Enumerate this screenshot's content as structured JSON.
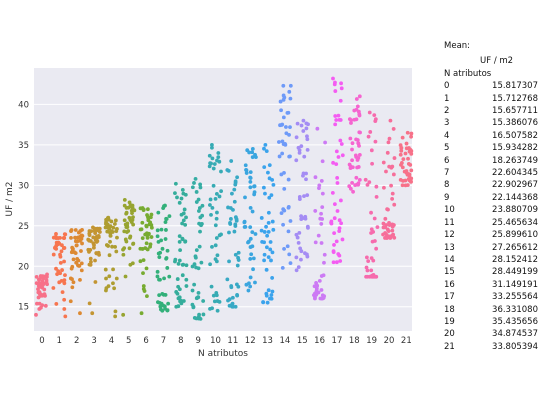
{
  "chart_data": {
    "type": "scatter",
    "style": "strip plot (jittered), one color per category",
    "xlabel": "N atributos",
    "ylabel": "UF / m2",
    "categories": [
      "0",
      "1",
      "2",
      "3",
      "4",
      "5",
      "6",
      "7",
      "8",
      "9",
      "10",
      "11",
      "12",
      "13",
      "14",
      "15",
      "16",
      "17",
      "18",
      "19",
      "20",
      "21"
    ],
    "xticks": [
      "0",
      "1",
      "2",
      "3",
      "4",
      "5",
      "6",
      "7",
      "8",
      "9",
      "10",
      "11",
      "12",
      "13",
      "14",
      "15",
      "16",
      "17",
      "18",
      "19",
      "20",
      "21"
    ],
    "yticks": [
      15,
      20,
      25,
      30,
      35,
      40
    ],
    "ylim": [
      12,
      44.5
    ],
    "grid": true,
    "background": "#eaeaf2",
    "colors": [
      "#f77189",
      "#f7754f",
      "#dc8932",
      "#c39532",
      "#ae9d31",
      "#97a431",
      "#77ab31",
      "#33b07a",
      "#35ad9c",
      "#36ada4",
      "#37abb4",
      "#38a9c5",
      "#3aa5df",
      "#3ba3ec",
      "#6e9af8",
      "#a48cf4",
      "#cc7af4",
      "#f45cf2",
      "#f565d0",
      "#f66bad",
      "#f66e9a",
      "#f77189"
    ],
    "groups": [
      {
        "x": "0",
        "n": 45,
        "min": 14.0,
        "max": 19.0,
        "mean": 15.817307
      },
      {
        "x": "1",
        "n": 45,
        "min": 13.8,
        "max": 24.0,
        "mean": 15.712768
      },
      {
        "x": "2",
        "n": 45,
        "min": 14.2,
        "max": 24.5,
        "mean": 15.657711
      },
      {
        "x": "3",
        "n": 45,
        "min": 14.2,
        "max": 24.8,
        "mean": 15.386076
      },
      {
        "x": "4",
        "n": 45,
        "min": 13.8,
        "max": 26.0,
        "mean": 16.507582
      },
      {
        "x": "5",
        "n": 45,
        "min": 14.0,
        "max": 28.2,
        "mean": 15.934282
      },
      {
        "x": "6",
        "n": 45,
        "min": 14.2,
        "max": 27.2,
        "mean": 18.263749
      },
      {
        "x": "7",
        "n": 45,
        "min": 14.5,
        "max": 27.5,
        "mean": 22.604345
      },
      {
        "x": "8",
        "n": 45,
        "min": 15.0,
        "max": 30.2,
        "mean": 22.902967
      },
      {
        "x": "9",
        "n": 45,
        "min": 13.5,
        "max": 30.8,
        "mean": 22.144368
      },
      {
        "x": "10",
        "n": 45,
        "min": 14.5,
        "max": 35.0,
        "mean": 23.880709
      },
      {
        "x": "11",
        "n": 45,
        "min": 15.0,
        "max": 33.0,
        "mean": 25.465634
      },
      {
        "x": "12",
        "n": 45,
        "min": 17.0,
        "max": 34.5,
        "mean": 25.89961
      },
      {
        "x": "13",
        "n": 45,
        "min": 15.5,
        "max": 35.0,
        "mean": 27.265612
      },
      {
        "x": "14",
        "n": 45,
        "min": 19.8,
        "max": 42.3,
        "mean": 28.152412
      },
      {
        "x": "15",
        "n": 45,
        "min": 19.5,
        "max": 38.0,
        "mean": 28.449199
      },
      {
        "x": "16",
        "n": 45,
        "min": 16.0,
        "max": 37.0,
        "mean": 31.149191
      },
      {
        "x": "17",
        "n": 45,
        "min": 20.5,
        "max": 43.2,
        "mean": 33.255564
      },
      {
        "x": "18",
        "n": 45,
        "min": 29.2,
        "max": 41.0,
        "mean": 36.33108
      },
      {
        "x": "19",
        "n": 45,
        "min": 18.7,
        "max": 39.0,
        "mean": 35.435656
      },
      {
        "x": "20",
        "n": 45,
        "min": 23.5,
        "max": 38.0,
        "mean": 34.874537
      },
      {
        "x": "21",
        "n": 45,
        "min": 30.0,
        "max": 36.5,
        "mean": 33.805394
      }
    ]
  },
  "mean_table": {
    "title": "Mean:",
    "column_header": "UF / m2",
    "index_header": "N atributos",
    "rows": [
      {
        "index": "0",
        "value": "15.817307"
      },
      {
        "index": "1",
        "value": "15.712768"
      },
      {
        "index": "2",
        "value": "15.657711"
      },
      {
        "index": "3",
        "value": "15.386076"
      },
      {
        "index": "4",
        "value": "16.507582"
      },
      {
        "index": "5",
        "value": "15.934282"
      },
      {
        "index": "6",
        "value": "18.263749"
      },
      {
        "index": "7",
        "value": "22.604345"
      },
      {
        "index": "8",
        "value": "22.902967"
      },
      {
        "index": "9",
        "value": "22.144368"
      },
      {
        "index": "10",
        "value": "23.880709"
      },
      {
        "index": "11",
        "value": "25.465634"
      },
      {
        "index": "12",
        "value": "25.899610"
      },
      {
        "index": "13",
        "value": "27.265612"
      },
      {
        "index": "14",
        "value": "28.152412"
      },
      {
        "index": "15",
        "value": "28.449199"
      },
      {
        "index": "16",
        "value": "31.149191"
      },
      {
        "index": "17",
        "value": "33.255564"
      },
      {
        "index": "18",
        "value": "36.331080"
      },
      {
        "index": "19",
        "value": "35.435656"
      },
      {
        "index": "20",
        "value": "34.874537"
      },
      {
        "index": "21",
        "value": "33.805394"
      }
    ]
  }
}
